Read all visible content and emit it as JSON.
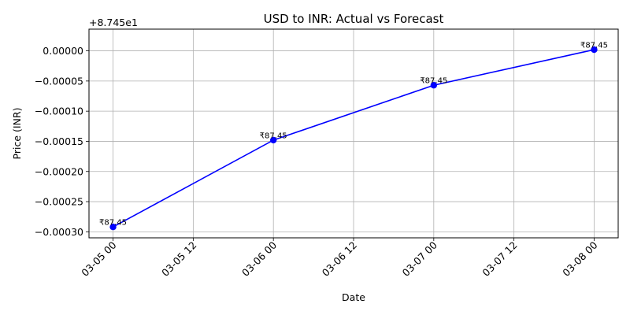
{
  "chart_data": {
    "type": "line",
    "title": "USD to INR: Actual vs Forecast",
    "xlabel": "Date",
    "ylabel": "Price (INR)",
    "y_offset_text": "+8.745e1",
    "x": [
      "03-05 00",
      "03-06 00",
      "03-07 00",
      "03-08 00"
    ],
    "x_tick_labels": [
      "03-05 00",
      "03-05 12",
      "03-06 00",
      "03-06 12",
      "03-07 00",
      "03-07 12",
      "03-08 00"
    ],
    "y_tick_labels": [
      "0.00000",
      "−0.00005",
      "−0.00010",
      "−0.00015",
      "−0.00020",
      "−0.00025",
      "−0.00030"
    ],
    "y_tick_values": [
      0.0,
      -5e-05,
      -0.0001,
      -0.00015,
      -0.0002,
      -0.00025,
      -0.0003
    ],
    "series": [
      {
        "values": [
          -0.000292,
          -0.000148,
          -5.7e-05,
          2e-06
        ],
        "data_labels": [
          "₹87.45",
          "₹87.45",
          "₹87.45",
          "₹87.45"
        ],
        "color": "#0000ff",
        "marker": "circle"
      }
    ],
    "xlim_days": [
      -0.15,
      3.15
    ],
    "ylim": [
      -0.00031,
      3.6e-05
    ],
    "grid": true,
    "legend": "none"
  }
}
